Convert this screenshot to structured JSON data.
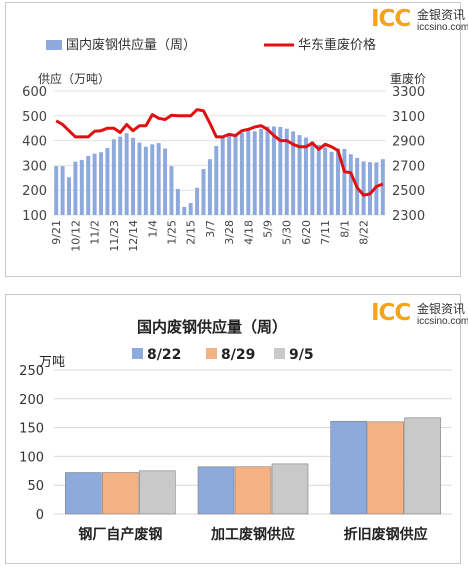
{
  "logo": {
    "mark": "ICC",
    "cn": "金银资讯",
    "url": "iccsino.com"
  },
  "chart_data": [
    {
      "type": "bar+line",
      "legend": {
        "placement": "top",
        "bar_series": "国内废钢供应量（周）",
        "line_series": "华东重废价格"
      },
      "left_axis_title": "供应（万吨）",
      "right_axis_title": "重废价",
      "left_ticks": [
        "600",
        "500",
        "400",
        "300",
        "200",
        "100"
      ],
      "right_ticks": [
        "3300",
        "3100",
        "2900",
        "2700",
        "2500",
        "2300"
      ],
      "ylim_left": [
        100,
        600
      ],
      "ylim_right": [
        2300,
        3300
      ],
      "x_tick_labels": [
        "9/21",
        "10/12",
        "11/2",
        "11/23",
        "12/14",
        "1/4",
        "1/25",
        "2/15",
        "3/7",
        "3/28",
        "4/18",
        "5/9",
        "5/30",
        "6/20",
        "7/11",
        "8/1",
        "8/22"
      ],
      "x_tick_index": [
        0,
        3,
        6,
        9,
        12,
        15,
        18,
        21,
        24,
        27,
        30,
        33,
        36,
        39,
        42,
        45,
        48
      ],
      "supply": [
        297,
        297,
        252,
        315,
        322,
        338,
        347,
        353,
        370,
        405,
        416,
        430,
        411,
        392,
        375,
        385,
        390,
        368,
        297,
        205,
        133,
        148,
        210,
        285,
        325,
        378,
        412,
        426,
        420,
        432,
        443,
        437,
        447,
        457,
        457,
        455,
        448,
        437,
        422,
        412,
        397,
        383,
        372,
        355,
        368,
        366,
        345,
        330,
        316,
        313,
        312,
        325
      ],
      "price": [
        3060,
        3030,
        2980,
        2930,
        2930,
        2930,
        2975,
        2980,
        3000,
        3000,
        2965,
        3030,
        2980,
        3020,
        3020,
        3110,
        3080,
        3070,
        3105,
        3100,
        3100,
        3100,
        3150,
        3140,
        3040,
        2930,
        2930,
        2950,
        2940,
        2980,
        2990,
        3010,
        3020,
        2990,
        2940,
        2900,
        2900,
        2870,
        2850,
        2850,
        2880,
        2830,
        2870,
        2850,
        2820,
        2650,
        2640,
        2520,
        2460,
        2470,
        2530,
        2550
      ],
      "colors": {
        "bars": "#8ea9db",
        "line": "#e01010"
      }
    },
    {
      "type": "bar",
      "title": "国内废钢供应量（周）",
      "unit": "万吨",
      "categories": [
        "钢厂自产废钢",
        "加工废钢供应",
        "折旧废钢供应"
      ],
      "series": [
        {
          "name": "8/22",
          "values": [
            72,
            82,
            161
          ],
          "color": "#8ea9db"
        },
        {
          "name": "8/29",
          "values": [
            72,
            82,
            160
          ],
          "color": "#f4b183"
        },
        {
          "name": "9/5",
          "values": [
            75,
            87,
            167
          ],
          "color": "#c9c9c9"
        }
      ],
      "yticks": [
        "250",
        "200",
        "150",
        "100",
        "50",
        "0"
      ],
      "ylim": [
        0,
        250
      ]
    }
  ]
}
